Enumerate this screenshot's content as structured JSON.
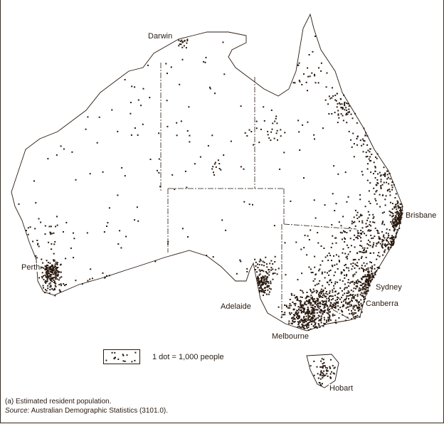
{
  "map": {
    "cities": {
      "darwin": "Darwin",
      "brisbane": "Brisbane",
      "perth": "Perth",
      "sydney": "Sydney",
      "canberra": "Canberra",
      "adelaide": "Adelaide",
      "melbourne": "Melbourne",
      "hobart": "Hobart"
    },
    "legend": "1 dot = 1,000 people",
    "dot_color": "#2a1a10"
  },
  "footnote": "(a) Estimated resident population.",
  "source_label": "Source:",
  "source_text": " Australian Demographic Statistics (3101.0)."
}
